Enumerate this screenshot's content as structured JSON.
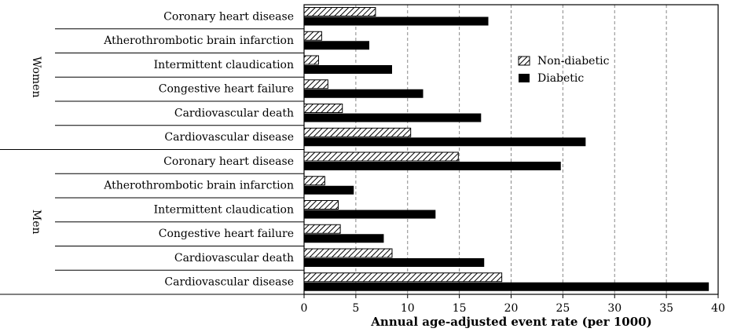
{
  "chart_data": {
    "type": "bar",
    "orientation": "horizontal",
    "xlabel": "Annual age-adjusted event rate (per 1000)",
    "xlim": [
      0,
      40
    ],
    "xticks": [
      "0",
      "5",
      "10",
      "15",
      "20",
      "25",
      "30",
      "35",
      "40"
    ],
    "grid": "vertical dashed",
    "legend_position": "right-center",
    "groups": [
      {
        "name": "Women",
        "categories": [
          "Coronary heart disease",
          "Atherothrombotic brain infarction",
          "Intermittent claudication",
          "Congestive heart failure",
          "Cardiovascular death",
          "Cardiovascular disease"
        ]
      },
      {
        "name": "Men",
        "categories": [
          "Coronary heart disease",
          "Atherothrombotic brain infarction",
          "Intermittent claudication",
          "Congestive heart failure",
          "Cardiovascular death",
          "Cardiovascular disease"
        ]
      }
    ],
    "series": [
      {
        "name": "Non-diabetic",
        "pattern": "hatched",
        "values": [
          6.9,
          1.7,
          1.4,
          2.3,
          3.7,
          10.3,
          14.9,
          2.0,
          3.3,
          3.5,
          8.5,
          19.1
        ]
      },
      {
        "name": "Diabetic",
        "pattern": "solid",
        "color": "#000000",
        "values": [
          17.8,
          6.3,
          8.5,
          11.5,
          17.1,
          27.2,
          24.8,
          4.8,
          12.7,
          7.7,
          17.4,
          39.1
        ]
      }
    ]
  }
}
